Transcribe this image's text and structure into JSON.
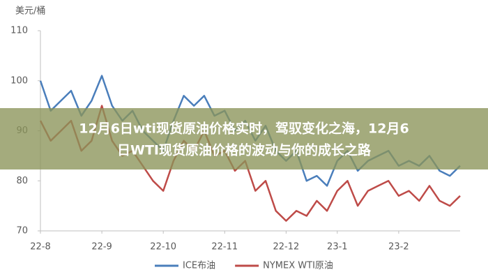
{
  "chart_data": {
    "type": "line",
    "y_label": "美元/桶",
    "categories": [
      "22-8",
      null,
      null,
      null,
      null,
      null,
      "22-9",
      null,
      null,
      null,
      null,
      null,
      "22-10",
      null,
      null,
      null,
      null,
      null,
      "22-11",
      null,
      null,
      null,
      null,
      null,
      "22-12",
      null,
      null,
      null,
      null,
      "23-1",
      null,
      null,
      null,
      null,
      null,
      "23-2",
      null,
      null,
      null,
      null,
      null,
      null
    ],
    "series": [
      {
        "name": "ICE布油",
        "color": "#4a7ebb",
        "values": [
          100,
          94,
          96,
          98,
          93,
          96,
          101,
          95,
          92,
          94,
          90,
          88,
          86,
          92,
          97,
          95,
          97,
          93,
          94,
          90,
          92,
          88,
          91,
          86,
          84,
          86,
          80,
          81,
          79,
          84,
          86,
          82,
          84,
          85,
          86,
          83,
          84,
          83,
          85,
          82,
          81,
          83
        ]
      },
      {
        "name": "NYMEX WTI原油",
        "color": "#be4b48",
        "values": [
          92,
          88,
          90,
          92,
          86,
          88,
          95,
          88,
          85,
          86,
          83,
          80,
          78,
          84,
          88,
          86,
          90,
          85,
          86,
          82,
          84,
          78,
          80,
          74,
          72,
          74,
          73,
          76,
          74,
          78,
          80,
          75,
          78,
          79,
          80,
          77,
          78,
          76,
          79,
          76,
          75,
          77
        ]
      }
    ],
    "ylim": [
      70,
      110
    ],
    "yticks": [
      70,
      80,
      90,
      100,
      110
    ],
    "grid": false,
    "legend": "bottom"
  },
  "overlay": {
    "lines": [
      "12月6日wti现货原油价格实时，驾驭变化之海，12月6",
      "日WTI现货原油价格的波动与你的成长之路"
    ]
  }
}
